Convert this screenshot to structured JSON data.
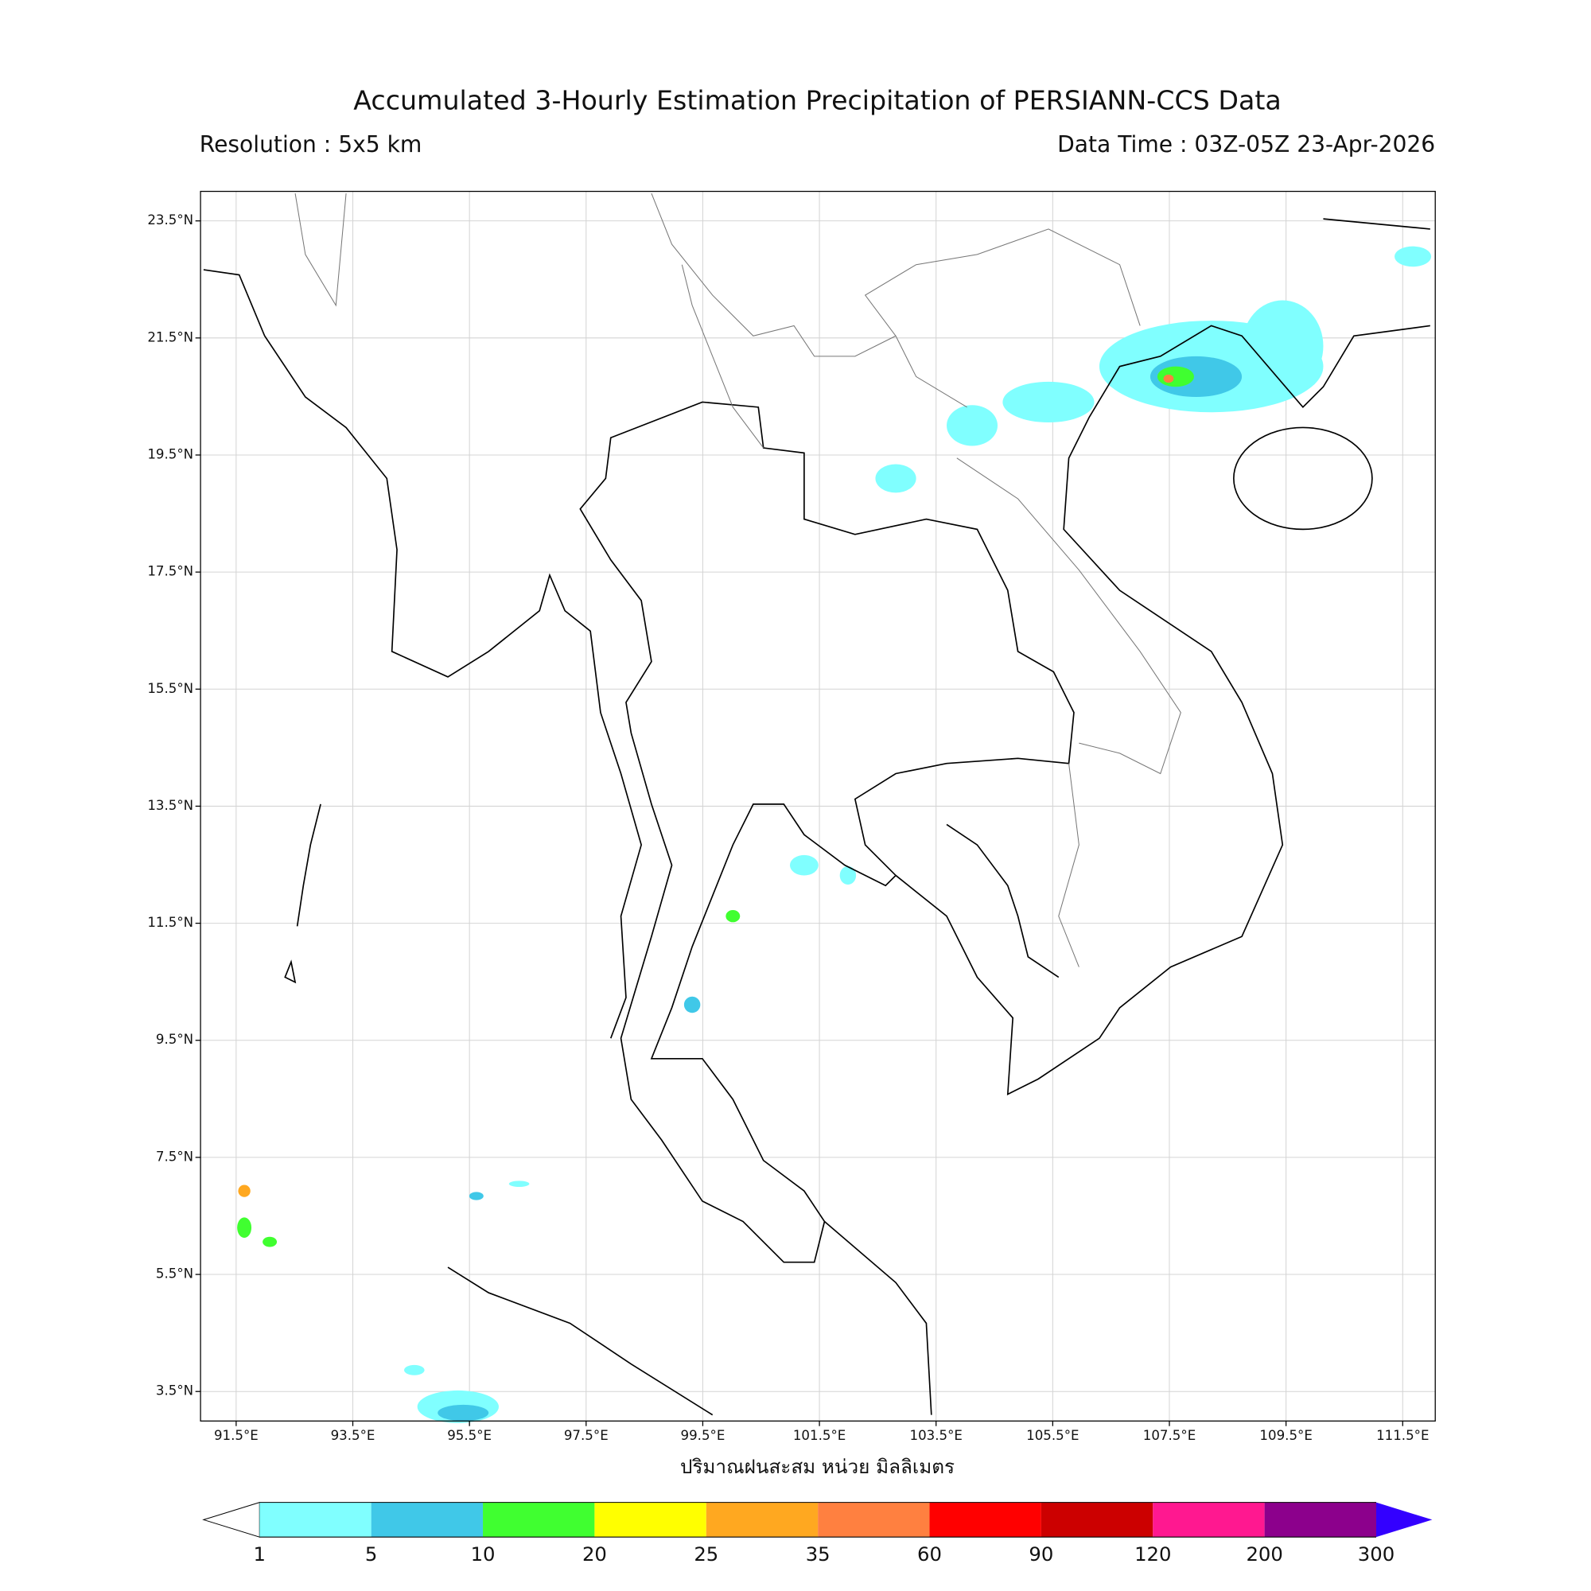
{
  "header": {
    "title": "Accumulated 3-Hourly Estimation Precipitation of PERSIANN-CCS Data",
    "resolution": "Resolution : 5x5 km",
    "data_time": "Data Time : 03Z-05Z 23-Apr-2026"
  },
  "map": {
    "lat_ticks": [
      "23.5°N",
      "21.5°N",
      "19.5°N",
      "17.5°N",
      "15.5°N",
      "13.5°N",
      "11.5°N",
      "9.5°N",
      "7.5°N",
      "5.5°N",
      "3.5°N"
    ],
    "lon_ticks": [
      "91.5°E",
      "93.5°E",
      "95.5°E",
      "97.5°E",
      "99.5°E",
      "101.5°E",
      "103.5°E",
      "105.5°E",
      "107.5°E",
      "109.5°E",
      "111.5°E"
    ],
    "xlabel": "ปริมาณฝนสะสม หน่วย มิลลิเมตร"
  },
  "colorbar": {
    "levels": [
      1,
      5,
      10,
      20,
      25,
      35,
      60,
      90,
      120,
      200,
      300
    ],
    "colors": [
      "#80ffff",
      "#40c8e8",
      "#40ff30",
      "#ffff00",
      "#ffa820",
      "#ff8040",
      "#ff0000",
      "#cc0000",
      "#ff1890",
      "#8c008c"
    ],
    "over_color": "#3300ff"
  }
}
